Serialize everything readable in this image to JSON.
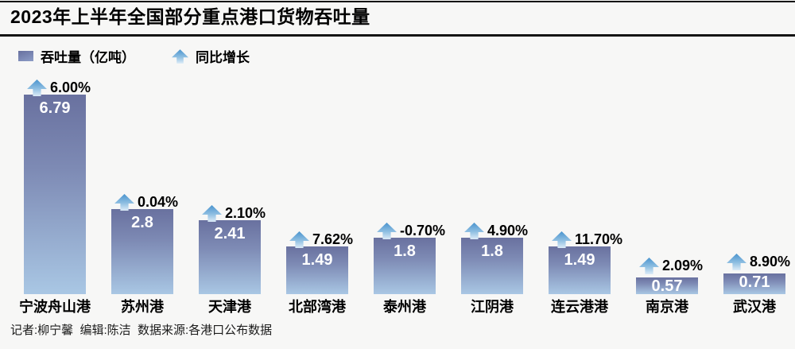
{
  "title": "2023年上半年全国部分重点港口货物吞吐量",
  "legend": {
    "throughput_label": "吞吐量（亿吨）",
    "growth_label": "同比增长"
  },
  "footer": {
    "credits": "记者:柳宁馨  编辑:陈洁  数据来源:各港口公布数据"
  },
  "colors": {
    "background": "#f7f7f6",
    "bar_top": "#69719f",
    "bar_bottom": "#a9c7e4",
    "arrow_top": "#4a94ce",
    "arrow_mid": "#8fbfe2",
    "arrow_bottom": "#dcebf7",
    "legend_swatch": "#6b75a8",
    "rule": "#141414",
    "bar_value_text": "#ffffff",
    "text": "#000000"
  },
  "chart_data": {
    "type": "bar",
    "title": "2023年上半年全国部分重点港口货物吞吐量",
    "categories": [
      "宁波舟山港",
      "苏州港",
      "天津港",
      "北部湾港",
      "泰州港",
      "江阴港",
      "连云港港",
      "南京港",
      "武汉港"
    ],
    "series": [
      {
        "name": "吞吐量（亿吨）",
        "values": [
          6.79,
          2.8,
          2.41,
          1.49,
          1.8,
          1.8,
          1.49,
          0.57,
          0.71
        ]
      },
      {
        "name": "同比增长",
        "values": [
          "6.00%",
          "0.04%",
          "2.10%",
          "7.62%",
          "-0.70%",
          "4.90%",
          "11.70%",
          "2.09%",
          "8.90%"
        ]
      }
    ],
    "ylim": [
      0,
      7
    ],
    "xlabel": "",
    "ylabel": "吞吐量（亿吨）",
    "value_labels_shown": true,
    "legend_position": "top-left",
    "grid": false,
    "axes_shown": false
  }
}
